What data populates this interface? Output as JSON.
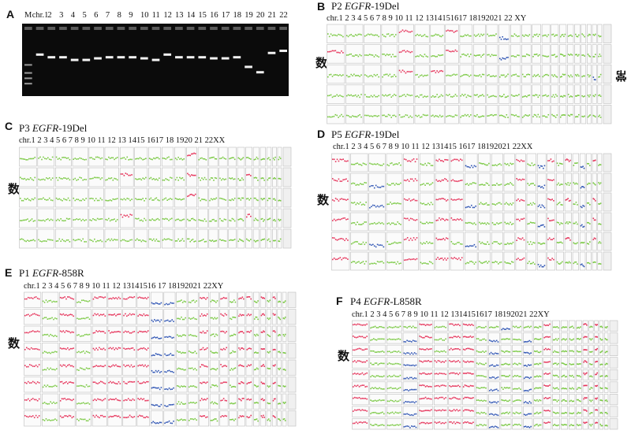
{
  "panel_a": {
    "letter": "A",
    "lanes": [
      "M",
      "chr.1",
      "2",
      "3",
      "4",
      "5",
      "6",
      "7",
      "8",
      "9",
      "10",
      "11",
      "12",
      "13",
      "14",
      "15",
      "16",
      "17",
      "18",
      "19",
      "20",
      "21",
      "22"
    ],
    "band_levels": [
      0.2,
      0.35,
      0.4,
      0.4,
      0.45,
      0.45,
      0.42,
      0.4,
      0.4,
      0.4,
      0.42,
      0.45,
      0.35,
      0.4,
      0.4,
      0.4,
      0.42,
      0.42,
      0.4,
      0.58,
      0.68,
      0.32,
      0.28
    ]
  },
  "panel_b": {
    "letter": "B",
    "prefix": "P2 ",
    "gene": "EGFR",
    "suffix": "-19Del",
    "chromosomes": "chr.1  2   3   4   5   6   7   8  9   10  11  12  1314151617 18192021 22 XY",
    "ylabel": "拷贝数",
    "side_label": "常染色体",
    "rows": 5,
    "chr_states": [
      [
        "n",
        "n",
        "n",
        "n",
        "g",
        "n",
        "n",
        "g",
        "n",
        "n",
        "n",
        "l",
        "n",
        "n",
        "n",
        "n",
        "n",
        "n",
        "n",
        "n",
        "n",
        "n",
        "n",
        "n"
      ],
      [
        "g",
        "n",
        "n",
        "n",
        "g",
        "n",
        "n",
        "g",
        "n",
        "n",
        "n",
        "l",
        "n",
        "n",
        "n",
        "n",
        "n",
        "n",
        "n",
        "n",
        "n",
        "n",
        "n",
        "n"
      ],
      [
        "n",
        "n",
        "n",
        "n",
        "g",
        "n",
        "g",
        "n",
        "n",
        "n",
        "n",
        "n",
        "n",
        "n",
        "n",
        "n",
        "n",
        "n",
        "n",
        "n",
        "n",
        "n",
        "l",
        "n"
      ],
      [
        "n",
        "n",
        "n",
        "n",
        "n",
        "n",
        "n",
        "n",
        "n",
        "n",
        "n",
        "n",
        "n",
        "n",
        "n",
        "n",
        "n",
        "n",
        "n",
        "n",
        "n",
        "n",
        "n",
        "n"
      ],
      [
        "n",
        "n",
        "n",
        "n",
        "n",
        "n",
        "n",
        "n",
        "n",
        "n",
        "n",
        "n",
        "n",
        "n",
        "n",
        "n",
        "n",
        "n",
        "n",
        "n",
        "n",
        "n",
        "n",
        "n"
      ]
    ]
  },
  "panel_c": {
    "letter": "C",
    "prefix": "P3 ",
    "gene": "EGFR",
    "suffix": "-19Del",
    "chromosomes": "chr.1      2      3      4      5      6      7      8     9     10    11    12    13 1415 1617  18 1920 21  22XX",
    "ylabel": "拷贝数",
    "rows": 5,
    "chr_states": [
      [
        "n",
        "n",
        "n",
        "n",
        "n",
        "n",
        "n",
        "n",
        "n",
        "n",
        "n",
        "g",
        "n",
        "n",
        "n",
        "n",
        "n",
        "n",
        "n",
        "n",
        "n",
        "n",
        "n"
      ],
      [
        "n",
        "n",
        "n",
        "n",
        "n",
        "n",
        "g",
        "n",
        "n",
        "n",
        "n",
        "g",
        "n",
        "n",
        "n",
        "n",
        "n",
        "g",
        "n",
        "n",
        "n",
        "n",
        "n"
      ],
      [
        "n",
        "n",
        "n",
        "n",
        "n",
        "n",
        "n",
        "n",
        "n",
        "n",
        "n",
        "g",
        "n",
        "n",
        "n",
        "n",
        "n",
        "n",
        "n",
        "n",
        "n",
        "n",
        "n"
      ],
      [
        "n",
        "n",
        "n",
        "n",
        "n",
        "n",
        "g",
        "n",
        "n",
        "n",
        "n",
        "n",
        "n",
        "n",
        "n",
        "n",
        "n",
        "g",
        "n",
        "n",
        "n",
        "n",
        "n"
      ],
      [
        "n",
        "n",
        "n",
        "n",
        "n",
        "n",
        "n",
        "n",
        "n",
        "n",
        "n",
        "n",
        "n",
        "n",
        "n",
        "n",
        "n",
        "n",
        "n",
        "n",
        "n",
        "n",
        "n"
      ]
    ]
  },
  "panel_d": {
    "letter": "D",
    "prefix": "P5 ",
    "gene": "EGFR",
    "suffix": "-19Del",
    "chromosomes": "chr.1     2    3    4    5   6    7    8   9  10  11  12  131415 1617 18192021 22XX",
    "ylabel": "拷贝数",
    "rows": 6,
    "chr_states": [
      [
        "g",
        "n",
        "n",
        "n",
        "g",
        "n",
        "g",
        "g",
        "l",
        "n",
        "n",
        "n",
        "g",
        "n",
        "l",
        "g",
        "n",
        "g",
        "n",
        "l",
        "n",
        "g",
        "n"
      ],
      [
        "g",
        "n",
        "l",
        "n",
        "g",
        "n",
        "g",
        "g",
        "n",
        "n",
        "n",
        "n",
        "g",
        "n",
        "l",
        "g",
        "n",
        "n",
        "n",
        "l",
        "n",
        "n",
        "n"
      ],
      [
        "g",
        "n",
        "l",
        "n",
        "g",
        "n",
        "g",
        "g",
        "l",
        "n",
        "n",
        "n",
        "g",
        "n",
        "l",
        "g",
        "n",
        "g",
        "n",
        "l",
        "n",
        "g",
        "n"
      ],
      [
        "g",
        "n",
        "n",
        "n",
        "g",
        "n",
        "g",
        "g",
        "n",
        "n",
        "n",
        "n",
        "g",
        "n",
        "l",
        "g",
        "n",
        "n",
        "n",
        "l",
        "n",
        "g",
        "n"
      ],
      [
        "g",
        "n",
        "l",
        "n",
        "g",
        "n",
        "g",
        "n",
        "l",
        "n",
        "n",
        "n",
        "g",
        "n",
        "n",
        "g",
        "n",
        "g",
        "n",
        "n",
        "n",
        "g",
        "n"
      ],
      [
        "g",
        "n",
        "n",
        "n",
        "g",
        "n",
        "g",
        "g",
        "n",
        "n",
        "n",
        "n",
        "g",
        "n",
        "l",
        "g",
        "n",
        "n",
        "n",
        "l",
        "n",
        "n",
        "n"
      ]
    ]
  },
  "panel_e": {
    "letter": "E",
    "prefix": "P1 ",
    "gene": "EGFR",
    "suffix": "-858R",
    "chromosomes": "chr.1    2    3     4    5    6   7   8  9   10  11  12  13141516 17 18192021 22XY",
    "ylabel": "拷贝数",
    "rows": 8,
    "chr_states": [
      [
        "g",
        "n",
        "g",
        "n",
        "g",
        "g",
        "g",
        "g",
        "l",
        "l",
        "n",
        "n",
        "g",
        "n",
        "g",
        "n",
        "g",
        "g",
        "n",
        "g",
        "n",
        "g",
        "n",
        "n"
      ],
      [
        "g",
        "n",
        "g",
        "n",
        "g",
        "g",
        "g",
        "g",
        "l",
        "l",
        "n",
        "n",
        "g",
        "n",
        "g",
        "n",
        "g",
        "g",
        "n",
        "g",
        "n",
        "g",
        "n",
        "n"
      ],
      [
        "g",
        "n",
        "g",
        "n",
        "g",
        "g",
        "g",
        "g",
        "l",
        "l",
        "n",
        "n",
        "g",
        "n",
        "g",
        "n",
        "g",
        "g",
        "n",
        "g",
        "n",
        "g",
        "n",
        "n"
      ],
      [
        "g",
        "n",
        "g",
        "n",
        "g",
        "g",
        "g",
        "g",
        "l",
        "l",
        "n",
        "n",
        "g",
        "n",
        "g",
        "n",
        "g",
        "g",
        "n",
        "g",
        "n",
        "g",
        "n",
        "n"
      ],
      [
        "g",
        "n",
        "g",
        "n",
        "g",
        "g",
        "g",
        "g",
        "l",
        "l",
        "n",
        "n",
        "g",
        "n",
        "g",
        "n",
        "g",
        "g",
        "n",
        "g",
        "n",
        "g",
        "n",
        "n"
      ],
      [
        "g",
        "n",
        "g",
        "n",
        "g",
        "g",
        "g",
        "g",
        "l",
        "l",
        "n",
        "n",
        "g",
        "n",
        "g",
        "n",
        "g",
        "g",
        "n",
        "g",
        "n",
        "g",
        "n",
        "n"
      ],
      [
        "g",
        "n",
        "g",
        "n",
        "g",
        "g",
        "g",
        "g",
        "l",
        "l",
        "n",
        "n",
        "g",
        "n",
        "g",
        "n",
        "g",
        "g",
        "n",
        "g",
        "n",
        "g",
        "n",
        "n"
      ],
      [
        "g",
        "n",
        "g",
        "n",
        "g",
        "g",
        "g",
        "g",
        "l",
        "l",
        "n",
        "n",
        "g",
        "n",
        "g",
        "n",
        "g",
        "g",
        "n",
        "g",
        "n",
        "g",
        "n",
        "n"
      ]
    ]
  },
  "panel_f": {
    "letter": "F",
    "prefix": "P4 ",
    "gene": "EGFR",
    "suffix": "-L858R",
    "chromosomes": "chr.1    2    3    4    5   6    7   8   9   10  11  12  1314151617 18192021 22XY",
    "ylabel": "拷贝数",
    "rows": 9,
    "chr_states": [
      [
        "g",
        "n",
        "n",
        "n",
        "g",
        "n",
        "g",
        "g",
        "n",
        "n",
        "l",
        "n",
        "n",
        "n",
        "g",
        "n",
        "n",
        "n",
        "n",
        "g",
        "n",
        "g",
        "n",
        "n"
      ],
      [
        "g",
        "n",
        "n",
        "l",
        "g",
        "n",
        "g",
        "g",
        "n",
        "l",
        "n",
        "n",
        "l",
        "n",
        "g",
        "n",
        "n",
        "n",
        "n",
        "g",
        "n",
        "g",
        "n",
        "n"
      ],
      [
        "g",
        "n",
        "n",
        "l",
        "g",
        "n",
        "g",
        "g",
        "n",
        "l",
        "n",
        "n",
        "l",
        "n",
        "g",
        "n",
        "n",
        "n",
        "n",
        "g",
        "n",
        "g",
        "n",
        "n"
      ],
      [
        "g",
        "n",
        "n",
        "l",
        "g",
        "g",
        "g",
        "g",
        "n",
        "l",
        "n",
        "n",
        "l",
        "n",
        "g",
        "n",
        "n",
        "n",
        "n",
        "g",
        "n",
        "g",
        "n",
        "n"
      ],
      [
        "g",
        "n",
        "n",
        "l",
        "g",
        "g",
        "g",
        "g",
        "n",
        "l",
        "n",
        "n",
        "l",
        "n",
        "g",
        "n",
        "n",
        "n",
        "n",
        "g",
        "n",
        "g",
        "n",
        "n"
      ],
      [
        "g",
        "n",
        "n",
        "l",
        "g",
        "g",
        "g",
        "g",
        "n",
        "l",
        "n",
        "n",
        "l",
        "n",
        "g",
        "n",
        "n",
        "n",
        "n",
        "g",
        "n",
        "g",
        "n",
        "n"
      ],
      [
        "g",
        "n",
        "n",
        "l",
        "g",
        "g",
        "g",
        "g",
        "n",
        "l",
        "n",
        "n",
        "l",
        "n",
        "g",
        "n",
        "n",
        "n",
        "n",
        "g",
        "n",
        "g",
        "n",
        "n"
      ],
      [
        "g",
        "n",
        "n",
        "l",
        "g",
        "g",
        "g",
        "g",
        "n",
        "l",
        "n",
        "n",
        "l",
        "n",
        "g",
        "n",
        "n",
        "n",
        "n",
        "g",
        "n",
        "g",
        "n",
        "n"
      ],
      [
        "g",
        "n",
        "n",
        "l",
        "g",
        "g",
        "g",
        "g",
        "n",
        "l",
        "n",
        "n",
        "l",
        "n",
        "g",
        "n",
        "n",
        "n",
        "n",
        "g",
        "n",
        "g",
        "n",
        "n"
      ]
    ]
  },
  "colors": {
    "normal": "#7ac943",
    "gain": "#e6335a",
    "loss": "#2f55b4",
    "gel_band": "#f2f2f2",
    "grid_line": "#bdbdbd"
  }
}
